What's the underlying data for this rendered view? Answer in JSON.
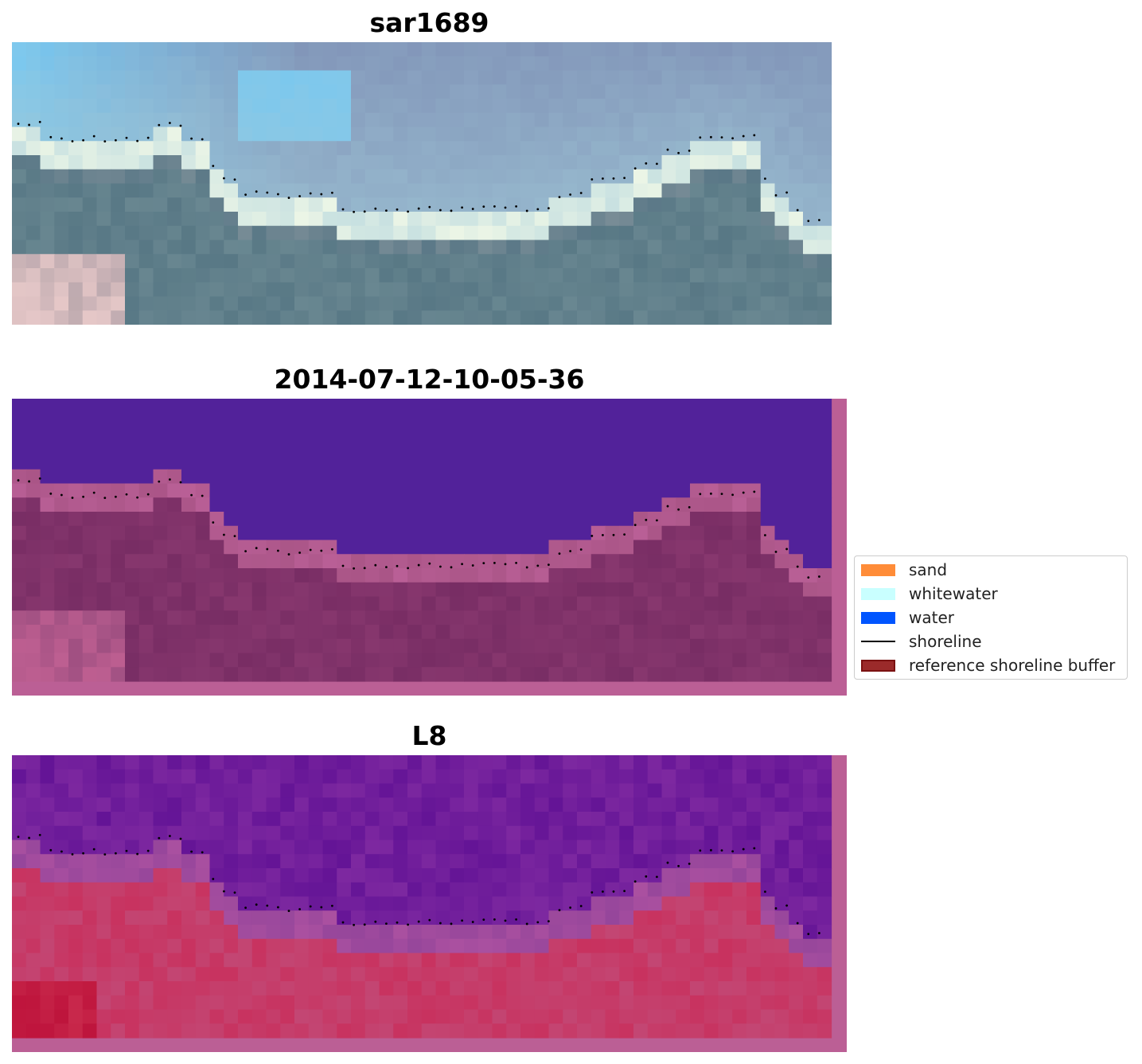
{
  "panels": [
    {
      "title": "sar1689",
      "kind": "rgb"
    },
    {
      "title": "2014-07-12-10-05-36",
      "kind": "classified"
    },
    {
      "title": "L8",
      "kind": "index"
    }
  ],
  "legend": {
    "items": [
      {
        "label": "sand",
        "color": "#ff8c38",
        "type": "patch"
      },
      {
        "label": "whitewater",
        "color": "#c9ffff",
        "type": "patch"
      },
      {
        "label": "water",
        "color": "#0055ff",
        "type": "patch"
      },
      {
        "label": "shoreline",
        "color": "#000000",
        "type": "line"
      },
      {
        "label": "reference shoreline buffer",
        "color": "#9b2a2a",
        "edge": "#7a1010",
        "type": "patch"
      }
    ]
  },
  "colors": {
    "water_class": "#52229a",
    "buffer_mask": "#bb5f95",
    "shoreline_points": "#000000"
  }
}
